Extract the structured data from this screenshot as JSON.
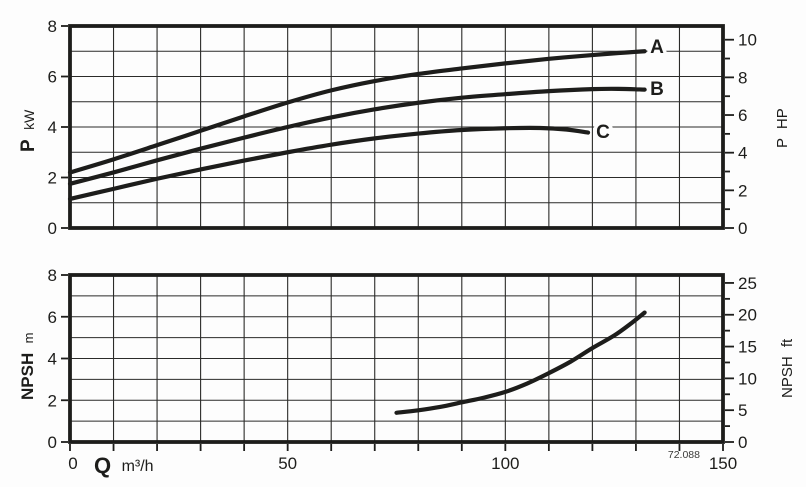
{
  "figure_code": "72.088",
  "colors": {
    "ink": "#1d1d1b",
    "grid": "#2b2b29",
    "background": "#fdfdfd"
  },
  "axis_titles": {
    "power_left": {
      "main": "P",
      "unit": "kW"
    },
    "power_right": {
      "main": "P",
      "unit": "HP"
    },
    "npsh_left": {
      "main": "NPSH",
      "unit": "m"
    },
    "npsh_right": {
      "main": "NPSH",
      "unit": "ft"
    },
    "x": {
      "main": "Q",
      "unit": "m³/h"
    }
  },
  "chart_data": [
    {
      "type": "line",
      "xlabel": "Q m³/h",
      "ylabel_left": "P kW",
      "ylabel_right": "P HP",
      "xlim": [
        0,
        150
      ],
      "x_grid_step": 10,
      "ylim": [
        0,
        8
      ],
      "y_grid_step": 1,
      "left_ticks": [
        0,
        2,
        4,
        6,
        8
      ],
      "x_tick_labels": [],
      "right_axis": {
        "unit": "HP",
        "ticks": [
          0,
          2,
          4,
          6,
          8,
          10
        ],
        "minor_step": 1,
        "left_units_per_right_unit": 0.7457
      },
      "series": [
        {
          "label": "A",
          "points": [
            [
              0,
              2.2
            ],
            [
              10,
              2.72
            ],
            [
              20,
              3.28
            ],
            [
              30,
              3.85
            ],
            [
              40,
              4.42
            ],
            [
              50,
              4.97
            ],
            [
              60,
              5.45
            ],
            [
              70,
              5.82
            ],
            [
              80,
              6.1
            ],
            [
              90,
              6.32
            ],
            [
              100,
              6.52
            ],
            [
              110,
              6.7
            ],
            [
              120,
              6.85
            ],
            [
              126,
              6.93
            ],
            [
              132,
              7.0
            ]
          ]
        },
        {
          "label": "B",
          "points": [
            [
              0,
              1.75
            ],
            [
              10,
              2.2
            ],
            [
              20,
              2.68
            ],
            [
              30,
              3.14
            ],
            [
              40,
              3.58
            ],
            [
              50,
              4.0
            ],
            [
              60,
              4.38
            ],
            [
              70,
              4.7
            ],
            [
              80,
              4.96
            ],
            [
              90,
              5.16
            ],
            [
              100,
              5.3
            ],
            [
              110,
              5.42
            ],
            [
              120,
              5.5
            ],
            [
              126,
              5.51
            ],
            [
              132,
              5.48
            ]
          ]
        },
        {
          "label": "C",
          "points": [
            [
              0,
              1.15
            ],
            [
              10,
              1.55
            ],
            [
              20,
              1.95
            ],
            [
              30,
              2.32
            ],
            [
              40,
              2.67
            ],
            [
              50,
              3.0
            ],
            [
              60,
              3.3
            ],
            [
              70,
              3.55
            ],
            [
              80,
              3.74
            ],
            [
              90,
              3.88
            ],
            [
              100,
              3.95
            ],
            [
              108,
              3.96
            ],
            [
              114,
              3.9
            ],
            [
              119,
              3.78
            ]
          ]
        }
      ]
    },
    {
      "type": "line",
      "xlabel": "Q m³/h",
      "ylabel_left": "NPSH m",
      "ylabel_right": "NPSH ft",
      "xlim": [
        0,
        150
      ],
      "x_grid_step": 10,
      "ylim": [
        0,
        8
      ],
      "y_grid_step": 1,
      "left_ticks": [
        0,
        2,
        4,
        6,
        8
      ],
      "x_tick_labels": [
        0,
        50,
        100,
        150
      ],
      "right_axis": {
        "unit": "ft",
        "ticks": [
          0,
          5,
          10,
          15,
          20,
          25
        ],
        "minor_step": 2.5,
        "left_units_per_right_unit": 0.3048
      },
      "series": [
        {
          "label": "NPSH",
          "points": [
            [
              75,
              1.4
            ],
            [
              80,
              1.52
            ],
            [
              85,
              1.68
            ],
            [
              90,
              1.9
            ],
            [
              95,
              2.12
            ],
            [
              100,
              2.4
            ],
            [
              105,
              2.8
            ],
            [
              110,
              3.3
            ],
            [
              115,
              3.85
            ],
            [
              120,
              4.5
            ],
            [
              125,
              5.1
            ],
            [
              129,
              5.7
            ],
            [
              132,
              6.2
            ]
          ]
        }
      ]
    }
  ]
}
